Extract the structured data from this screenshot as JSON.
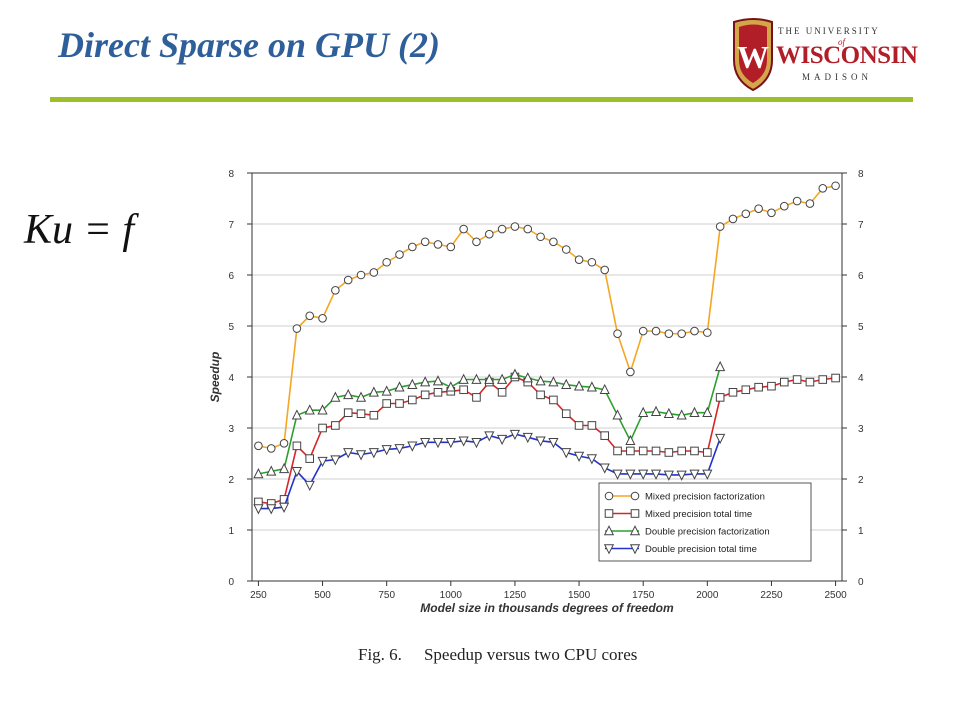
{
  "slide": {
    "title": "Direct Sparse on GPU (2)",
    "equation": "Ku = f",
    "caption_label": "Fig. 6.",
    "caption_text": "Speedup versus two CPU cores"
  },
  "logo": {
    "the_university": "THE UNIVERSITY",
    "of": "of",
    "name": "WISCONSIN",
    "city": "MADISON",
    "shield_letter": "W",
    "colors": {
      "red": "#b21e28",
      "gold": "#d4a64a"
    }
  },
  "chart_data": {
    "type": "line",
    "title": "",
    "xlabel": "Model size in thousands degrees of freedom",
    "ylabel": "Speedup",
    "xlim": [
      225,
      2525
    ],
    "ylim": [
      0,
      8
    ],
    "x_ticks": [
      "250",
      "500",
      "750",
      "1000",
      "1250",
      "1500",
      "1750",
      "2000",
      "2250",
      "2500"
    ],
    "y_ticks": [
      "0",
      "1",
      "2",
      "3",
      "4",
      "5",
      "6",
      "7",
      "8"
    ],
    "grid": "horizontal",
    "legend_position": "bottom-right",
    "series": [
      {
        "name": "Mixed precision factorization",
        "color": "#f5a623",
        "marker": "circle",
        "x": [
          250,
          300,
          350,
          400,
          450,
          500,
          550,
          600,
          650,
          700,
          750,
          800,
          850,
          900,
          950,
          1000,
          1050,
          1100,
          1150,
          1200,
          1250,
          1300,
          1350,
          1400,
          1450,
          1500,
          1550,
          1600,
          1650,
          1700,
          1750,
          1800,
          1850,
          1900,
          1950,
          2000,
          2050,
          2100,
          2150,
          2200,
          2250,
          2300,
          2350,
          2400,
          2450,
          2500
        ],
        "values": [
          2.65,
          2.6,
          2.7,
          4.95,
          5.2,
          5.15,
          5.7,
          5.9,
          6.0,
          6.05,
          6.25,
          6.4,
          6.55,
          6.65,
          6.6,
          6.55,
          6.9,
          6.65,
          6.8,
          6.9,
          6.95,
          6.9,
          6.75,
          6.65,
          6.5,
          6.3,
          6.25,
          6.1,
          4.85,
          4.1,
          4.9,
          4.9,
          4.85,
          4.85,
          4.9,
          4.87,
          6.95,
          7.1,
          7.2,
          7.3,
          7.22,
          7.35,
          7.45,
          7.4,
          7.7,
          7.75
        ]
      },
      {
        "name": "Mixed precision total time",
        "color": "#d62728",
        "marker": "square",
        "x": [
          250,
          300,
          350,
          400,
          450,
          500,
          550,
          600,
          650,
          700,
          750,
          800,
          850,
          900,
          950,
          1000,
          1050,
          1100,
          1150,
          1200,
          1250,
          1300,
          1350,
          1400,
          1450,
          1500,
          1550,
          1600,
          1650,
          1700,
          1750,
          1800,
          1850,
          1900,
          1950,
          2000,
          2050,
          2100,
          2150,
          2200,
          2250,
          2300,
          2350,
          2400,
          2450,
          2500
        ],
        "values": [
          1.55,
          1.52,
          1.6,
          2.65,
          2.4,
          3.0,
          3.05,
          3.3,
          3.28,
          3.25,
          3.48,
          3.48,
          3.55,
          3.65,
          3.7,
          3.72,
          3.75,
          3.6,
          3.9,
          3.7,
          4.0,
          3.9,
          3.65,
          3.55,
          3.28,
          3.05,
          3.05,
          2.85,
          2.55,
          2.55,
          2.55,
          2.55,
          2.52,
          2.55,
          2.55,
          2.52,
          3.6,
          3.7,
          3.75,
          3.8,
          3.82,
          3.9,
          3.95,
          3.9,
          3.95,
          3.98
        ]
      },
      {
        "name": "Double precision factorization",
        "color": "#2ca02c",
        "marker": "triangle-up",
        "x": [
          250,
          300,
          350,
          400,
          450,
          500,
          550,
          600,
          650,
          700,
          750,
          800,
          850,
          900,
          950,
          1000,
          1050,
          1100,
          1150,
          1200,
          1250,
          1300,
          1350,
          1400,
          1450,
          1500,
          1550,
          1600,
          1650,
          1700,
          1750,
          1800,
          1850,
          1900,
          1950,
          2000,
          2050
        ],
        "values": [
          2.1,
          2.15,
          2.2,
          3.25,
          3.35,
          3.35,
          3.6,
          3.65,
          3.6,
          3.7,
          3.72,
          3.8,
          3.85,
          3.9,
          3.92,
          3.8,
          3.95,
          3.95,
          3.95,
          3.95,
          4.05,
          3.98,
          3.92,
          3.9,
          3.85,
          3.82,
          3.8,
          3.75,
          3.25,
          2.75,
          3.3,
          3.32,
          3.28,
          3.25,
          3.3,
          3.3,
          4.2
        ]
      },
      {
        "name": "Double precision total time",
        "color": "#2233cc",
        "marker": "triangle-down",
        "x": [
          250,
          300,
          350,
          400,
          450,
          500,
          550,
          600,
          650,
          700,
          750,
          800,
          850,
          900,
          950,
          1000,
          1050,
          1100,
          1150,
          1200,
          1250,
          1300,
          1350,
          1400,
          1450,
          1500,
          1550,
          1600,
          1650,
          1700,
          1750,
          1800,
          1850,
          1900,
          1950,
          2000,
          2050
        ],
        "values": [
          1.42,
          1.42,
          1.45,
          2.15,
          1.88,
          2.35,
          2.38,
          2.52,
          2.48,
          2.52,
          2.58,
          2.6,
          2.65,
          2.72,
          2.72,
          2.72,
          2.75,
          2.72,
          2.85,
          2.78,
          2.88,
          2.82,
          2.75,
          2.72,
          2.52,
          2.45,
          2.4,
          2.22,
          2.1,
          2.1,
          2.1,
          2.1,
          2.08,
          2.08,
          2.1,
          2.1,
          2.8
        ]
      }
    ]
  }
}
